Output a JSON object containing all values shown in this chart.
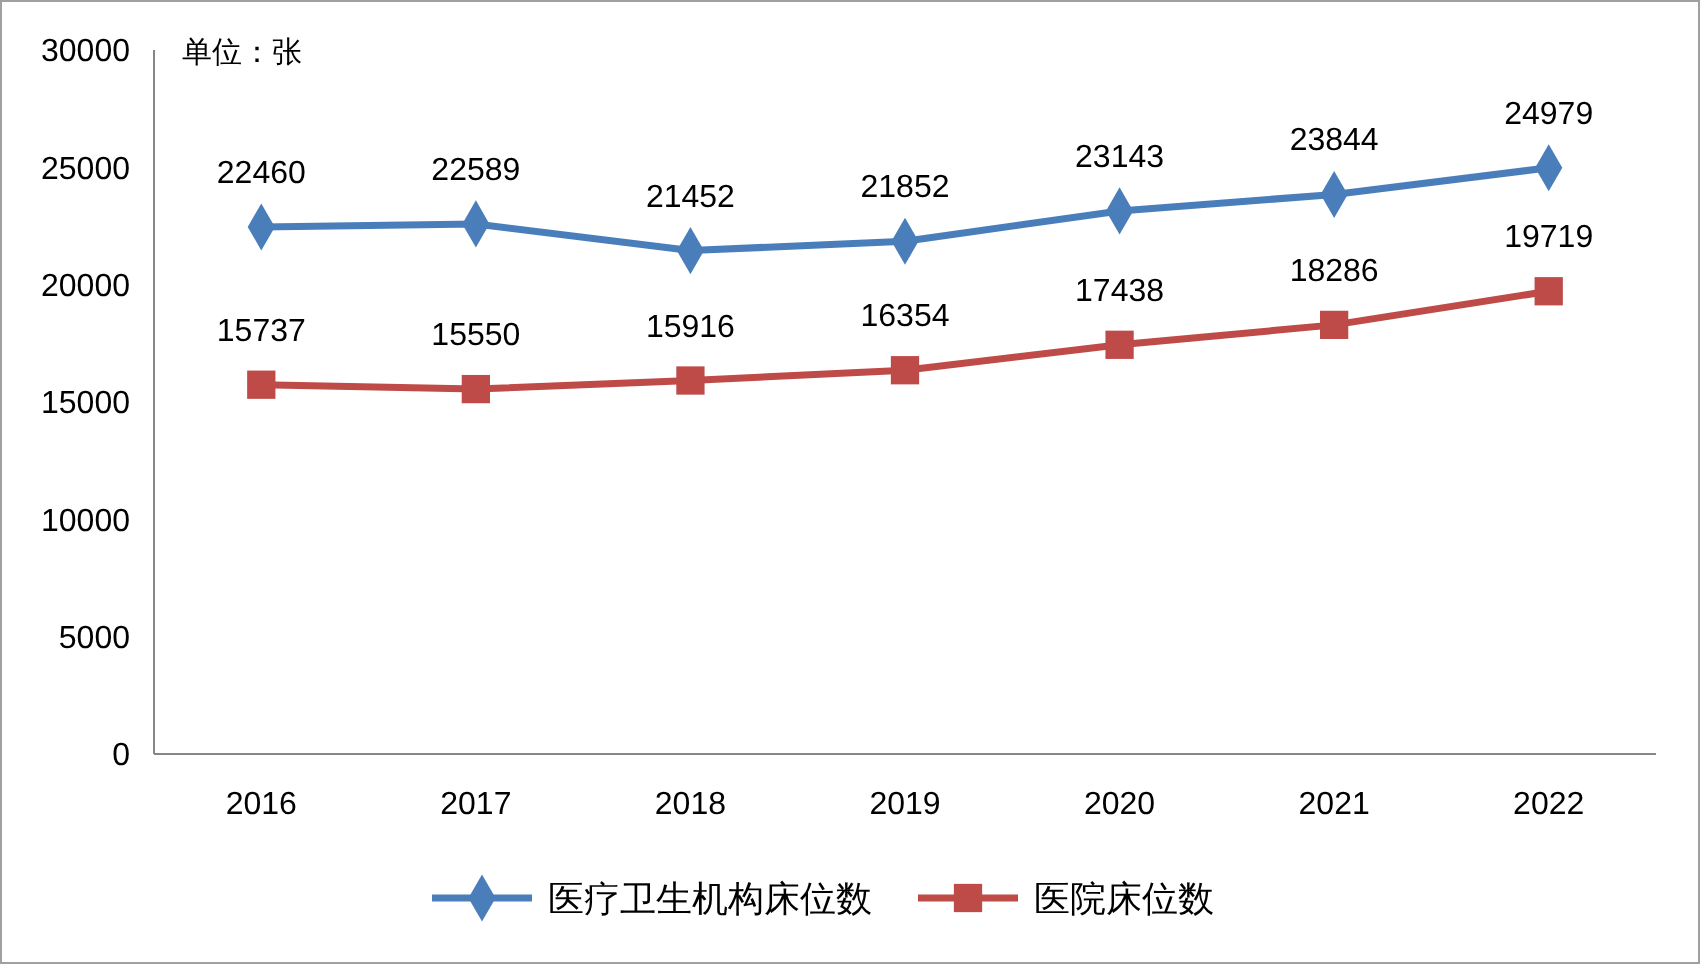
{
  "chart_data": {
    "type": "line",
    "categories": [
      "2016",
      "2017",
      "2018",
      "2019",
      "2020",
      "2021",
      "2022"
    ],
    "series": [
      {
        "name": "医疗卫生机构床位数",
        "color": "#4a7ebb",
        "marker": "diamond",
        "values": [
          22460,
          22589,
          21452,
          21852,
          23143,
          23844,
          24979
        ]
      },
      {
        "name": "医院床位数",
        "color": "#be4b48",
        "marker": "square",
        "values": [
          15737,
          15550,
          15916,
          16354,
          17438,
          18286,
          19719
        ]
      }
    ],
    "ylim": [
      0,
      30000
    ],
    "yticks": [
      0,
      5000,
      10000,
      15000,
      20000,
      25000,
      30000
    ],
    "data_labels": true,
    "legend": "bottom",
    "grid": false,
    "annotations": [
      "单位：张"
    ]
  }
}
